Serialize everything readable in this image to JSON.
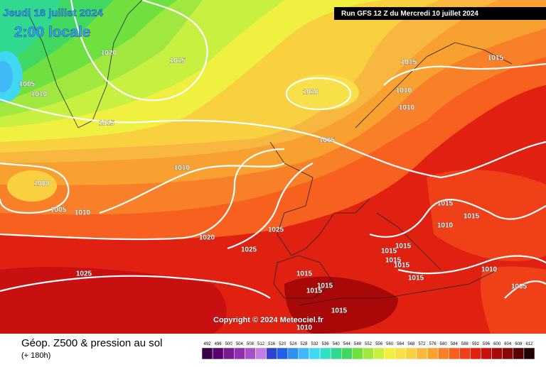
{
  "header": {
    "date": "Jeudi 18 juillet 2024",
    "time": "2:00 locale",
    "run": "Run GFS 12 Z du Mercredi 10 juillet 2024"
  },
  "copyright": "Copyright © 2024 Meteociel.fr",
  "footer": {
    "title": "Géop. Z500 & pression au sol",
    "lead": "(+ 180h)"
  },
  "isobar_labels": [
    "1020",
    "1015",
    "1005",
    "1010",
    "1015",
    "1010",
    "1015",
    "1015",
    "1010",
    "1010",
    "1015",
    "1010",
    "1000",
    "1005",
    "1010",
    "1025",
    "1020",
    "1025",
    "1015",
    "1015",
    "1010",
    "1015",
    "1015",
    "1015",
    "1015",
    "1015",
    "1015",
    "1010",
    "1025",
    "1015",
    "1015",
    "1005",
    "1015",
    "1010"
  ],
  "colorbar": {
    "labels": [
      492,
      496,
      500,
      504,
      508,
      512,
      516,
      520,
      524,
      528,
      532,
      536,
      540,
      544,
      548,
      552,
      556,
      560,
      564,
      568,
      572,
      576,
      580,
      584,
      588,
      592,
      596,
      600,
      604,
      608,
      612
    ],
    "colors": [
      "#3a0046",
      "#5a0070",
      "#7a1a8f",
      "#9030b0",
      "#a850c8",
      "#c080e0",
      "#3040d0",
      "#2060e8",
      "#3090f0",
      "#40b8f8",
      "#40d8f0",
      "#30e0c0",
      "#30d890",
      "#40d860",
      "#70e040",
      "#a0e840",
      "#c8f040",
      "#f0f040",
      "#f8e048",
      "#f8d040",
      "#f8b840",
      "#f8a030",
      "#f88028",
      "#f86020",
      "#f04018",
      "#e02010",
      "#c81010",
      "#a80808",
      "#880808",
      "#580000",
      "#200000"
    ]
  }
}
